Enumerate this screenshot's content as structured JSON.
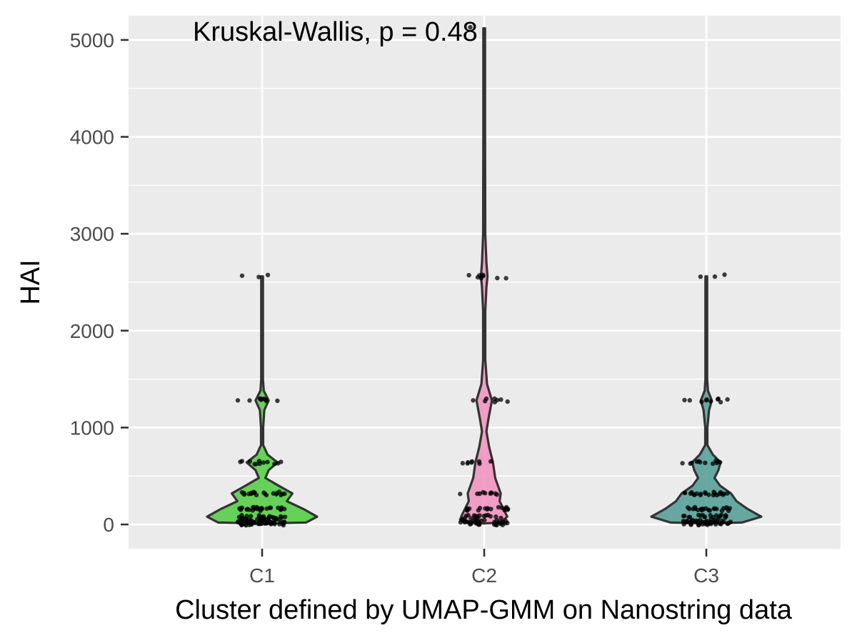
{
  "chart_data": {
    "type": "violin",
    "annotation": "Kruskal-Wallis, p = 0.48",
    "xlabel": "Cluster defined by UMAP-GMM on Nanostring data",
    "ylabel": "HAI",
    "categories": [
      "C1",
      "C2",
      "C3"
    ],
    "ylim": [
      -250,
      5250
    ],
    "yticks": [
      0,
      1000,
      2000,
      3000,
      4000,
      5000
    ],
    "ytick_labels": [
      "0",
      "1000",
      "2000",
      "3000",
      "4000",
      "5000"
    ],
    "grid": true,
    "legend": "none",
    "colors": {
      "panel_background": "#ebebeb",
      "grid": "#ffffff",
      "outline": "#333333",
      "point": "#000000",
      "C1": "#4fcc3f",
      "C2": "#f08fbd",
      "C3": "#4f9c94"
    },
    "series": [
      {
        "category": "C1",
        "max": 2560,
        "density": [
          [
            10,
            0.0
          ],
          [
            20,
            0.8
          ],
          [
            80,
            1.0
          ],
          [
            160,
            0.75
          ],
          [
            240,
            0.45
          ],
          [
            320,
            0.55
          ],
          [
            400,
            0.3
          ],
          [
            480,
            0.06
          ],
          [
            560,
            0.12
          ],
          [
            640,
            0.28
          ],
          [
            720,
            0.1
          ],
          [
            820,
            0.02
          ],
          [
            1000,
            0.02
          ],
          [
            1180,
            0.04
          ],
          [
            1280,
            0.12
          ],
          [
            1380,
            0.03
          ],
          [
            1500,
            0.015
          ],
          [
            2000,
            0.015
          ],
          [
            2560,
            0.015
          ]
        ],
        "points": [
          [
            10,
            30
          ],
          [
            20,
            24
          ],
          [
            40,
            18
          ],
          [
            80,
            22
          ],
          [
            160,
            26
          ],
          [
            320,
            22
          ],
          [
            640,
            12
          ],
          [
            1280,
            10
          ],
          [
            2560,
            3
          ]
        ]
      },
      {
        "category": "C2",
        "max": 5120,
        "density": [
          [
            10,
            0.0
          ],
          [
            20,
            0.3
          ],
          [
            80,
            0.42
          ],
          [
            160,
            0.35
          ],
          [
            240,
            0.28
          ],
          [
            320,
            0.3
          ],
          [
            480,
            0.2
          ],
          [
            640,
            0.16
          ],
          [
            800,
            0.09
          ],
          [
            960,
            0.04
          ],
          [
            1100,
            0.08
          ],
          [
            1280,
            0.14
          ],
          [
            1450,
            0.05
          ],
          [
            1700,
            0.02
          ],
          [
            2200,
            0.02
          ],
          [
            2450,
            0.04
          ],
          [
            2560,
            0.06
          ],
          [
            2700,
            0.04
          ],
          [
            3000,
            0.02
          ],
          [
            4000,
            0.015
          ],
          [
            5120,
            0.015
          ]
        ],
        "points": [
          [
            10,
            14
          ],
          [
            20,
            10
          ],
          [
            40,
            12
          ],
          [
            80,
            16
          ],
          [
            160,
            18
          ],
          [
            320,
            10
          ],
          [
            640,
            8
          ],
          [
            1280,
            8
          ],
          [
            2560,
            8
          ],
          [
            5120,
            1
          ]
        ]
      },
      {
        "category": "C3",
        "max": 2560,
        "density": [
          [
            10,
            0.0
          ],
          [
            20,
            0.65
          ],
          [
            80,
            1.0
          ],
          [
            160,
            0.75
          ],
          [
            240,
            0.55
          ],
          [
            320,
            0.45
          ],
          [
            400,
            0.25
          ],
          [
            480,
            0.15
          ],
          [
            560,
            0.22
          ],
          [
            640,
            0.26
          ],
          [
            720,
            0.12
          ],
          [
            820,
            0.02
          ],
          [
            1000,
            0.02
          ],
          [
            1180,
            0.05
          ],
          [
            1280,
            0.1
          ],
          [
            1380,
            0.03
          ],
          [
            1500,
            0.015
          ],
          [
            2000,
            0.015
          ],
          [
            2560,
            0.015
          ]
        ],
        "points": [
          [
            10,
            20
          ],
          [
            20,
            14
          ],
          [
            40,
            16
          ],
          [
            80,
            18
          ],
          [
            160,
            22
          ],
          [
            320,
            22
          ],
          [
            640,
            12
          ],
          [
            1280,
            10
          ],
          [
            2560,
            3
          ]
        ]
      }
    ]
  }
}
